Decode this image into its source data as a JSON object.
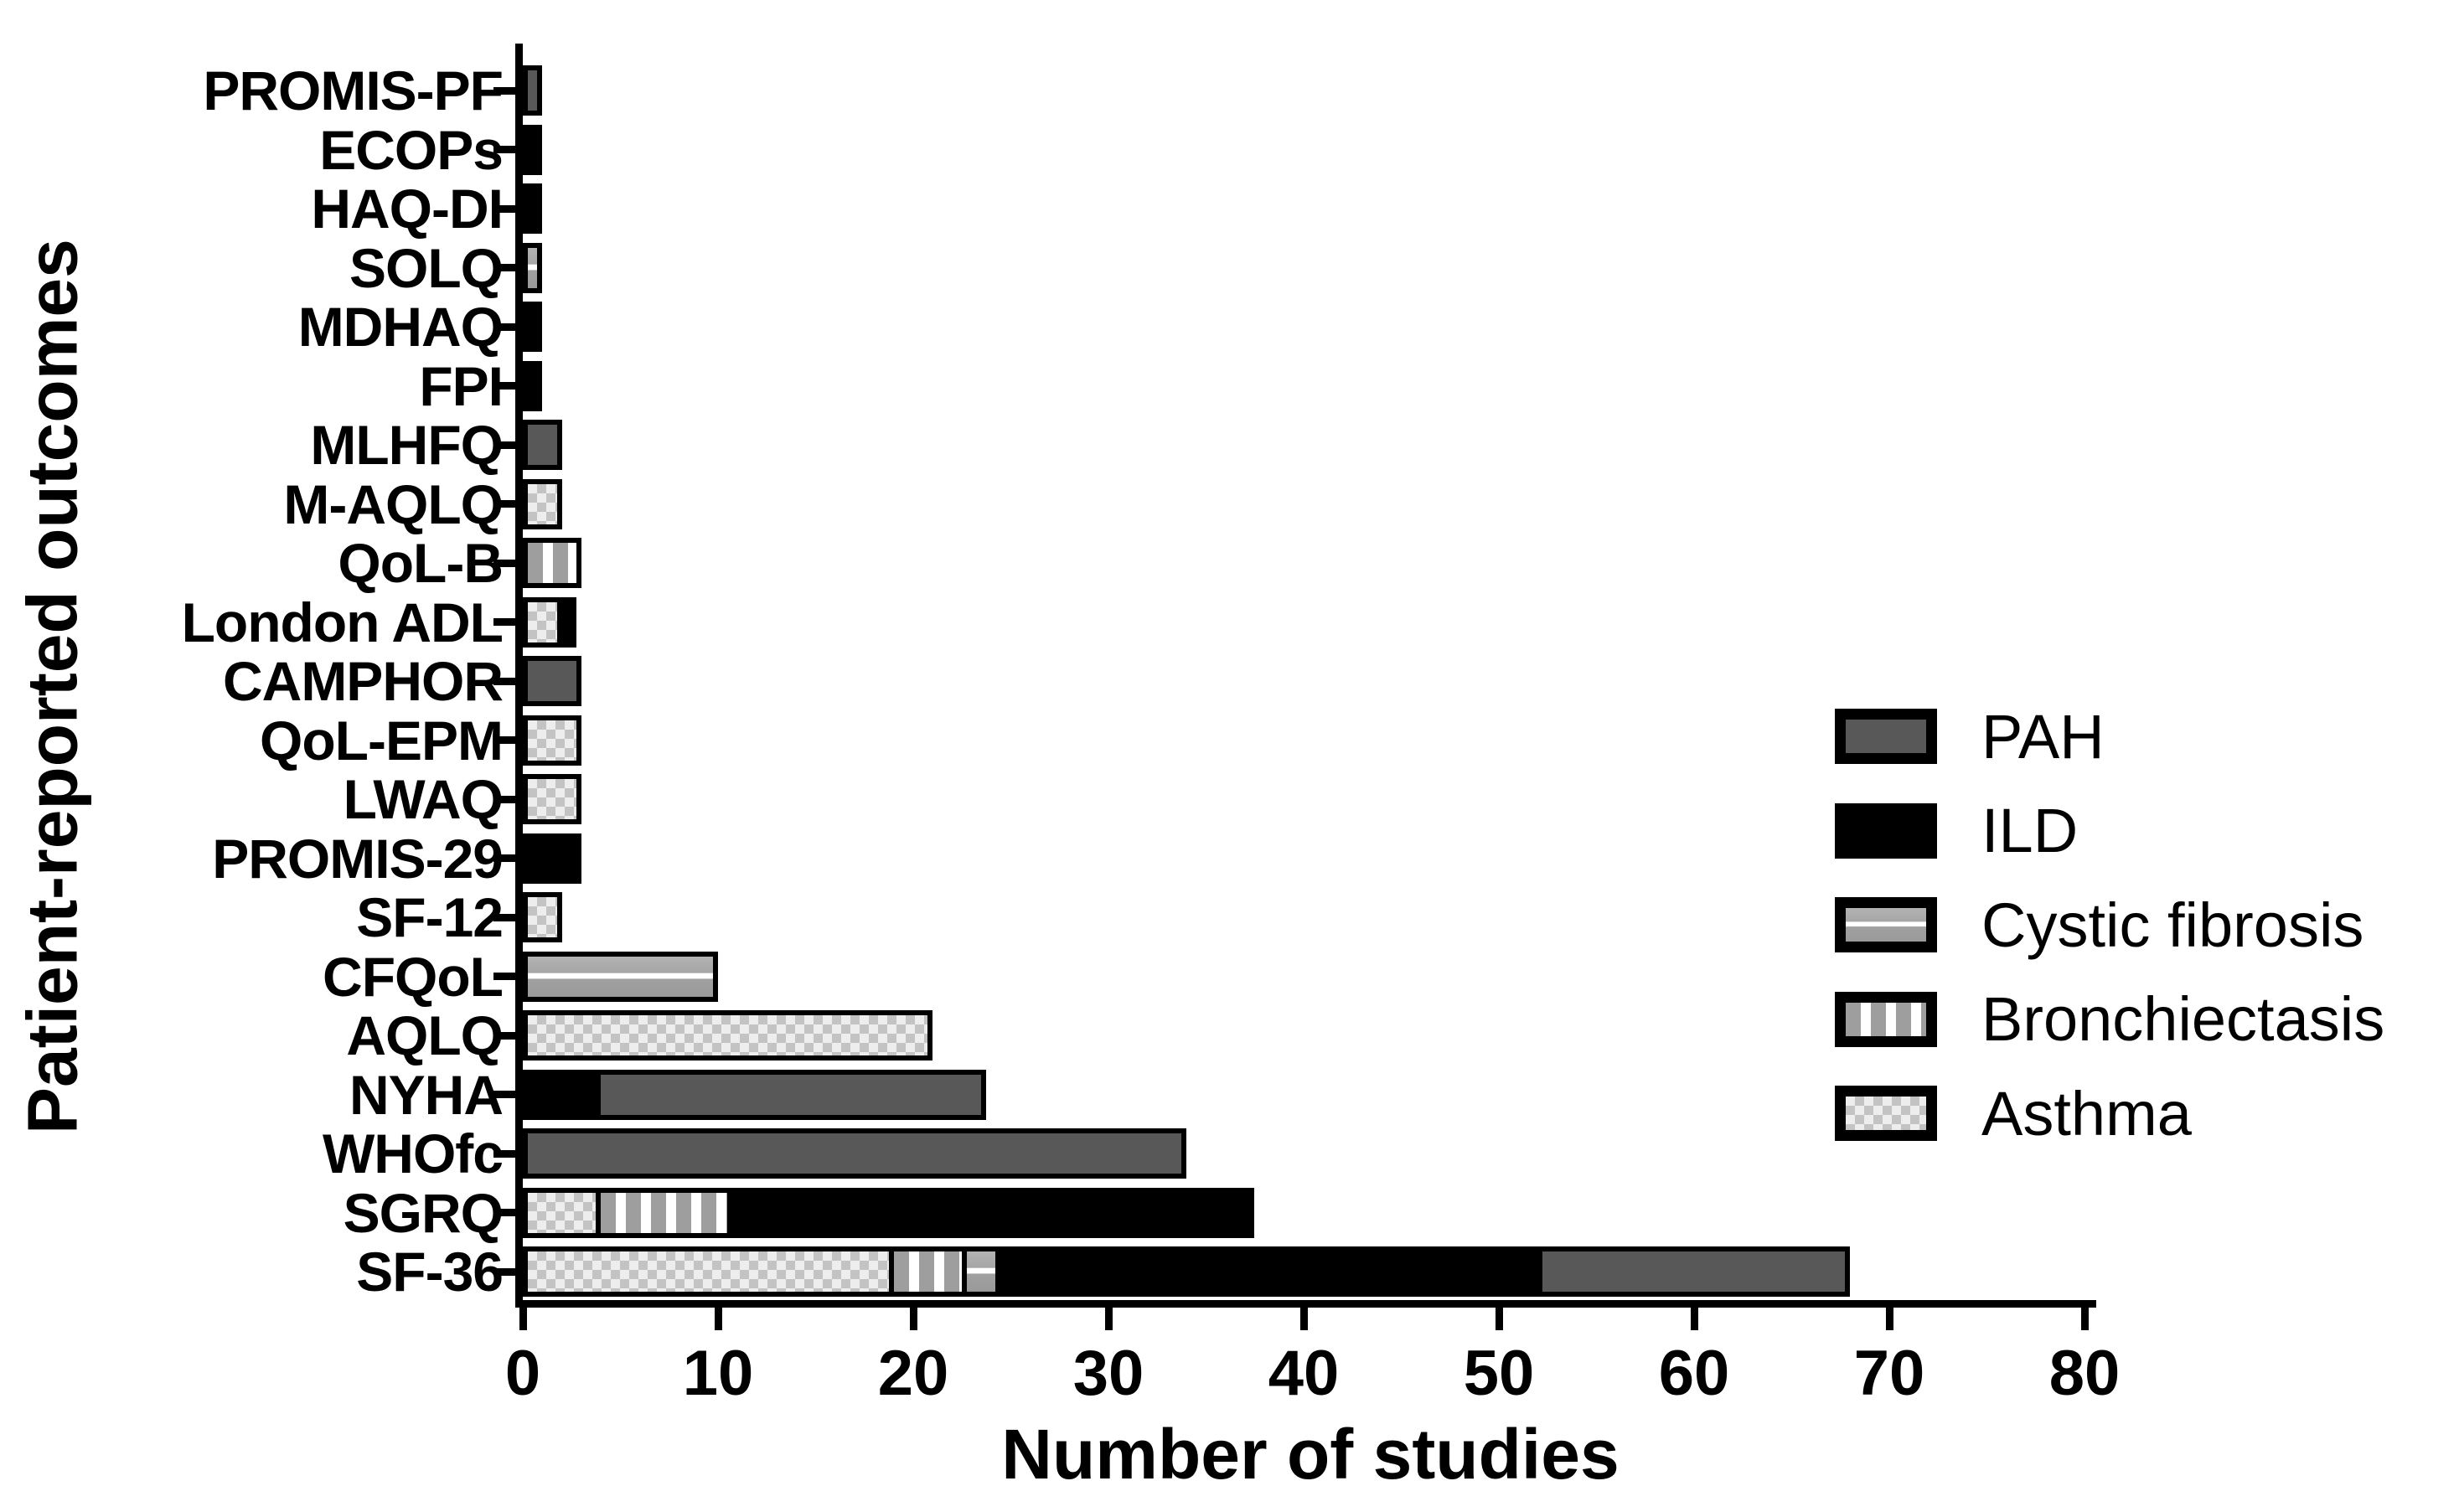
{
  "chart_data": {
    "type": "bar",
    "orientation": "horizontal",
    "stacked": true,
    "title": "",
    "xlabel": "Number of studies",
    "ylabel": "Patient-reported outcomes",
    "xlim": [
      0,
      80
    ],
    "xticks": [
      0,
      10,
      20,
      30,
      40,
      50,
      60,
      70,
      80
    ],
    "grid": false,
    "legend_position": "right-center",
    "categories": [
      "PROMIS-PF",
      "ECOPs",
      "HAQ-DI",
      "SOLQ",
      "MDHAQ",
      "FPI",
      "MLHFQ",
      "M-AQLQ",
      "QoL-B",
      "London ADL",
      "CAMPHOR",
      "QoL-EPM",
      "LWAQ",
      "PROMIS-29",
      "SF-12",
      "CFQoL",
      "AQLQ",
      "NYHA",
      "WHOfc",
      "SGRQ",
      "SF-36"
    ],
    "series": [
      {
        "key": "pah",
        "name": "PAH",
        "color": "#585858",
        "pattern": "solid-dark-gray",
        "values": [
          1,
          0,
          0,
          0,
          0,
          0,
          2,
          0,
          0,
          0,
          3,
          0,
          0,
          0,
          0,
          0,
          0,
          20,
          34,
          0,
          16
        ]
      },
      {
        "key": "ild",
        "name": "ILD",
        "color": "#000000",
        "pattern": "solid-black",
        "values": [
          0,
          1,
          1,
          0,
          1,
          1,
          0,
          0,
          0,
          1,
          0,
          0,
          0,
          3,
          0,
          0,
          0,
          4,
          0,
          27,
          28
        ]
      },
      {
        "key": "cystic_fibrosis",
        "name": "Cystic fibrosis",
        "color": "#a6a6a6",
        "pattern": "gray-with-white-horizontal-line",
        "values": [
          0,
          0,
          0,
          1,
          0,
          0,
          0,
          0,
          0,
          0,
          0,
          0,
          0,
          0,
          0,
          10,
          0,
          0,
          0,
          0,
          2
        ]
      },
      {
        "key": "bronchiectasis",
        "name": "Bronchiectasis",
        "color": "#9e9e9e",
        "pattern": "gray-with-white-vertical-stripes",
        "values": [
          0,
          0,
          0,
          0,
          0,
          0,
          0,
          0,
          3,
          0,
          0,
          0,
          0,
          0,
          0,
          0,
          0,
          0,
          0,
          7,
          4
        ]
      },
      {
        "key": "asthma",
        "name": "Asthma",
        "color": "#c3c3c3",
        "pattern": "light-gray-checkerboard",
        "values": [
          0,
          0,
          0,
          0,
          0,
          0,
          0,
          2,
          0,
          2,
          0,
          3,
          3,
          0,
          2,
          0,
          21,
          0,
          0,
          4,
          19
        ]
      }
    ],
    "stack_order_from_axis": [
      "asthma",
      "bronchiectasis",
      "cystic_fibrosis",
      "ild",
      "pah"
    ],
    "legend_order": [
      "pah",
      "ild",
      "cystic_fibrosis",
      "bronchiectasis",
      "asthma"
    ],
    "totals": [
      1,
      1,
      1,
      1,
      1,
      1,
      2,
      2,
      3,
      3,
      3,
      3,
      3,
      3,
      2,
      10,
      21,
      24,
      34,
      38,
      69
    ]
  }
}
